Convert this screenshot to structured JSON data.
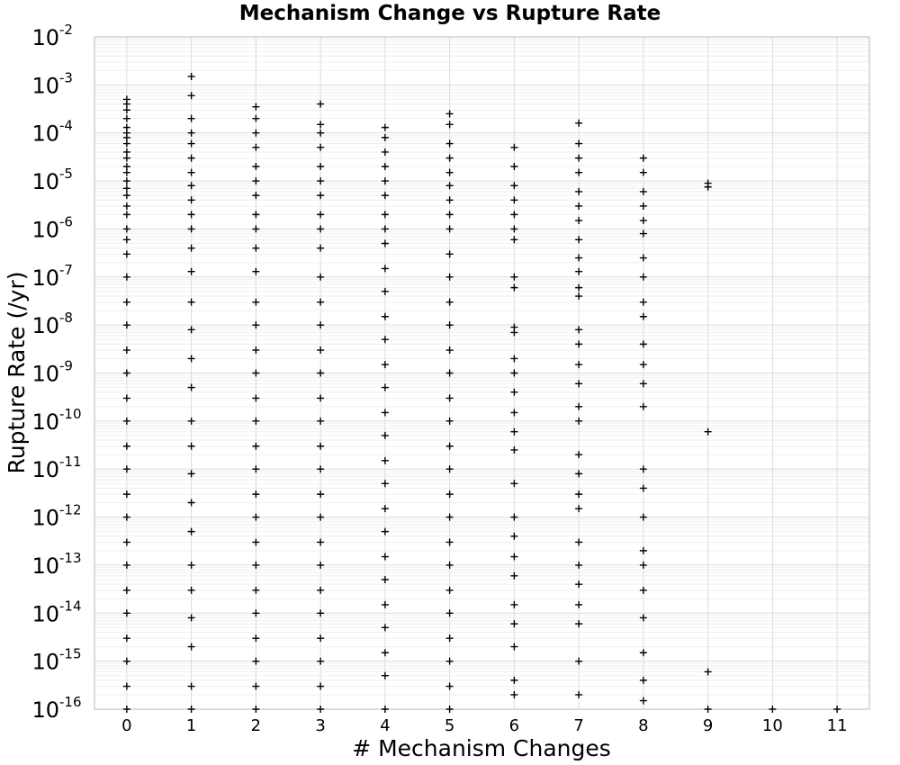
{
  "chart_data": {
    "type": "scatter",
    "title": "Mechanism Change vs Rupture Rate",
    "xlabel": "# Mechanism Changes",
    "ylabel": "Rupture Rate (/yr)",
    "xlim": [
      -0.5,
      11.5
    ],
    "ylim": [
      1e-16,
      0.01
    ],
    "y_scale": "log",
    "grid": true,
    "marker": "plus",
    "marker_color": "#000000",
    "x_ticks": [
      "0",
      "1",
      "2",
      "3",
      "4",
      "5",
      "6",
      "7",
      "8",
      "9",
      "10",
      "11"
    ],
    "y_ticks": [
      {
        "base": "10",
        "exp": "-2"
      },
      {
        "base": "10",
        "exp": "-3"
      },
      {
        "base": "10",
        "exp": "-4"
      },
      {
        "base": "10",
        "exp": "-5"
      },
      {
        "base": "10",
        "exp": "-6"
      },
      {
        "base": "10",
        "exp": "-7"
      },
      {
        "base": "10",
        "exp": "-8"
      },
      {
        "base": "10",
        "exp": "-9"
      },
      {
        "base": "10",
        "exp": "-10"
      },
      {
        "base": "10",
        "exp": "-11"
      },
      {
        "base": "10",
        "exp": "-12"
      },
      {
        "base": "10",
        "exp": "-13"
      },
      {
        "base": "10",
        "exp": "-14"
      },
      {
        "base": "10",
        "exp": "-15"
      },
      {
        "base": "10",
        "exp": "-16"
      }
    ],
    "points": [
      {
        "x": 0,
        "y": 0.0005
      },
      {
        "x": 0,
        "y": 0.0004
      },
      {
        "x": 0,
        "y": 0.0003
      },
      {
        "x": 0,
        "y": 0.0002
      },
      {
        "x": 0,
        "y": 0.00013
      },
      {
        "x": 0,
        "y": 0.0001
      },
      {
        "x": 0,
        "y": 8e-05
      },
      {
        "x": 0,
        "y": 6e-05
      },
      {
        "x": 0,
        "y": 4e-05
      },
      {
        "x": 0,
        "y": 3e-05
      },
      {
        "x": 0,
        "y": 2e-05
      },
      {
        "x": 0,
        "y": 1.5e-05
      },
      {
        "x": 0,
        "y": 1e-05
      },
      {
        "x": 0,
        "y": 7e-06
      },
      {
        "x": 0,
        "y": 5e-06
      },
      {
        "x": 0,
        "y": 3e-06
      },
      {
        "x": 0,
        "y": 2e-06
      },
      {
        "x": 0,
        "y": 1e-06
      },
      {
        "x": 0,
        "y": 6e-07
      },
      {
        "x": 0,
        "y": 3e-07
      },
      {
        "x": 0,
        "y": 1e-07
      },
      {
        "x": 0,
        "y": 3e-08
      },
      {
        "x": 0,
        "y": 1e-08
      },
      {
        "x": 0,
        "y": 3e-09
      },
      {
        "x": 0,
        "y": 1e-09
      },
      {
        "x": 0,
        "y": 3e-10
      },
      {
        "x": 0,
        "y": 1e-10
      },
      {
        "x": 0,
        "y": 3e-11
      },
      {
        "x": 0,
        "y": 1e-11
      },
      {
        "x": 0,
        "y": 3e-12
      },
      {
        "x": 0,
        "y": 1e-12
      },
      {
        "x": 0,
        "y": 3e-13
      },
      {
        "x": 0,
        "y": 1e-13
      },
      {
        "x": 0,
        "y": 3e-14
      },
      {
        "x": 0,
        "y": 1e-14
      },
      {
        "x": 0,
        "y": 3e-15
      },
      {
        "x": 0,
        "y": 1e-15
      },
      {
        "x": 0,
        "y": 3e-16
      },
      {
        "x": 0,
        "y": 1e-16
      },
      {
        "x": 1,
        "y": 0.0015
      },
      {
        "x": 1,
        "y": 0.0006
      },
      {
        "x": 1,
        "y": 0.0002
      },
      {
        "x": 1,
        "y": 0.0001
      },
      {
        "x": 1,
        "y": 6e-05
      },
      {
        "x": 1,
        "y": 3e-05
      },
      {
        "x": 1,
        "y": 1.5e-05
      },
      {
        "x": 1,
        "y": 8e-06
      },
      {
        "x": 1,
        "y": 4e-06
      },
      {
        "x": 1,
        "y": 2e-06
      },
      {
        "x": 1,
        "y": 1e-06
      },
      {
        "x": 1,
        "y": 4e-07
      },
      {
        "x": 1,
        "y": 1.3e-07
      },
      {
        "x": 1,
        "y": 3e-08
      },
      {
        "x": 1,
        "y": 8e-09
      },
      {
        "x": 1,
        "y": 2e-09
      },
      {
        "x": 1,
        "y": 5e-10
      },
      {
        "x": 1,
        "y": 1e-10
      },
      {
        "x": 1,
        "y": 3e-11
      },
      {
        "x": 1,
        "y": 8e-12
      },
      {
        "x": 1,
        "y": 2e-12
      },
      {
        "x": 1,
        "y": 5e-13
      },
      {
        "x": 1,
        "y": 1e-13
      },
      {
        "x": 1,
        "y": 3e-14
      },
      {
        "x": 1,
        "y": 8e-15
      },
      {
        "x": 1,
        "y": 2e-15
      },
      {
        "x": 1,
        "y": 3e-16
      },
      {
        "x": 1,
        "y": 1e-16
      },
      {
        "x": 2,
        "y": 0.00035
      },
      {
        "x": 2,
        "y": 0.0002
      },
      {
        "x": 2,
        "y": 0.0001
      },
      {
        "x": 2,
        "y": 5e-05
      },
      {
        "x": 2,
        "y": 2e-05
      },
      {
        "x": 2,
        "y": 1e-05
      },
      {
        "x": 2,
        "y": 5e-06
      },
      {
        "x": 2,
        "y": 2e-06
      },
      {
        "x": 2,
        "y": 1e-06
      },
      {
        "x": 2,
        "y": 4e-07
      },
      {
        "x": 2,
        "y": 1.3e-07
      },
      {
        "x": 2,
        "y": 3e-08
      },
      {
        "x": 2,
        "y": 1e-08
      },
      {
        "x": 2,
        "y": 3e-09
      },
      {
        "x": 2,
        "y": 1e-09
      },
      {
        "x": 2,
        "y": 3e-10
      },
      {
        "x": 2,
        "y": 1e-10
      },
      {
        "x": 2,
        "y": 3e-11
      },
      {
        "x": 2,
        "y": 1e-11
      },
      {
        "x": 2,
        "y": 3e-12
      },
      {
        "x": 2,
        "y": 1e-12
      },
      {
        "x": 2,
        "y": 3e-13
      },
      {
        "x": 2,
        "y": 1e-13
      },
      {
        "x": 2,
        "y": 3e-14
      },
      {
        "x": 2,
        "y": 1e-14
      },
      {
        "x": 2,
        "y": 3e-15
      },
      {
        "x": 2,
        "y": 1e-15
      },
      {
        "x": 2,
        "y": 3e-16
      },
      {
        "x": 2,
        "y": 1e-16
      },
      {
        "x": 3,
        "y": 0.0004
      },
      {
        "x": 3,
        "y": 0.00015
      },
      {
        "x": 3,
        "y": 0.0001
      },
      {
        "x": 3,
        "y": 5e-05
      },
      {
        "x": 3,
        "y": 2e-05
      },
      {
        "x": 3,
        "y": 1e-05
      },
      {
        "x": 3,
        "y": 5e-06
      },
      {
        "x": 3,
        "y": 2e-06
      },
      {
        "x": 3,
        "y": 1e-06
      },
      {
        "x": 3,
        "y": 4e-07
      },
      {
        "x": 3,
        "y": 1e-07
      },
      {
        "x": 3,
        "y": 3e-08
      },
      {
        "x": 3,
        "y": 1e-08
      },
      {
        "x": 3,
        "y": 3e-09
      },
      {
        "x": 3,
        "y": 1e-09
      },
      {
        "x": 3,
        "y": 3e-10
      },
      {
        "x": 3,
        "y": 1e-10
      },
      {
        "x": 3,
        "y": 3e-11
      },
      {
        "x": 3,
        "y": 1e-11
      },
      {
        "x": 3,
        "y": 3e-12
      },
      {
        "x": 3,
        "y": 1e-12
      },
      {
        "x": 3,
        "y": 3e-13
      },
      {
        "x": 3,
        "y": 1e-13
      },
      {
        "x": 3,
        "y": 3e-14
      },
      {
        "x": 3,
        "y": 1e-14
      },
      {
        "x": 3,
        "y": 3e-15
      },
      {
        "x": 3,
        "y": 1e-15
      },
      {
        "x": 3,
        "y": 3e-16
      },
      {
        "x": 3,
        "y": 1e-16
      },
      {
        "x": 4,
        "y": 0.00013
      },
      {
        "x": 4,
        "y": 8e-05
      },
      {
        "x": 4,
        "y": 4e-05
      },
      {
        "x": 4,
        "y": 2e-05
      },
      {
        "x": 4,
        "y": 1e-05
      },
      {
        "x": 4,
        "y": 5e-06
      },
      {
        "x": 4,
        "y": 2e-06
      },
      {
        "x": 4,
        "y": 1e-06
      },
      {
        "x": 4,
        "y": 5e-07
      },
      {
        "x": 4,
        "y": 1.5e-07
      },
      {
        "x": 4,
        "y": 5e-08
      },
      {
        "x": 4,
        "y": 1.5e-08
      },
      {
        "x": 4,
        "y": 5e-09
      },
      {
        "x": 4,
        "y": 1.5e-09
      },
      {
        "x": 4,
        "y": 5e-10
      },
      {
        "x": 4,
        "y": 1.5e-10
      },
      {
        "x": 4,
        "y": 5e-11
      },
      {
        "x": 4,
        "y": 1.5e-11
      },
      {
        "x": 4,
        "y": 5e-12
      },
      {
        "x": 4,
        "y": 1.5e-12
      },
      {
        "x": 4,
        "y": 5e-13
      },
      {
        "x": 4,
        "y": 1.5e-13
      },
      {
        "x": 4,
        "y": 5e-14
      },
      {
        "x": 4,
        "y": 1.5e-14
      },
      {
        "x": 4,
        "y": 5e-15
      },
      {
        "x": 4,
        "y": 1.5e-15
      },
      {
        "x": 4,
        "y": 5e-16
      },
      {
        "x": 4,
        "y": 1e-16
      },
      {
        "x": 5,
        "y": 0.00025
      },
      {
        "x": 5,
        "y": 0.00015
      },
      {
        "x": 5,
        "y": 6e-05
      },
      {
        "x": 5,
        "y": 3e-05
      },
      {
        "x": 5,
        "y": 1.5e-05
      },
      {
        "x": 5,
        "y": 8e-06
      },
      {
        "x": 5,
        "y": 4e-06
      },
      {
        "x": 5,
        "y": 2e-06
      },
      {
        "x": 5,
        "y": 1e-06
      },
      {
        "x": 5,
        "y": 3e-07
      },
      {
        "x": 5,
        "y": 1e-07
      },
      {
        "x": 5,
        "y": 3e-08
      },
      {
        "x": 5,
        "y": 1e-08
      },
      {
        "x": 5,
        "y": 3e-09
      },
      {
        "x": 5,
        "y": 1e-09
      },
      {
        "x": 5,
        "y": 3e-10
      },
      {
        "x": 5,
        "y": 1e-10
      },
      {
        "x": 5,
        "y": 3e-11
      },
      {
        "x": 5,
        "y": 1e-11
      },
      {
        "x": 5,
        "y": 3e-12
      },
      {
        "x": 5,
        "y": 1e-12
      },
      {
        "x": 5,
        "y": 3e-13
      },
      {
        "x": 5,
        "y": 1e-13
      },
      {
        "x": 5,
        "y": 3e-14
      },
      {
        "x": 5,
        "y": 1e-14
      },
      {
        "x": 5,
        "y": 3e-15
      },
      {
        "x": 5,
        "y": 1e-15
      },
      {
        "x": 5,
        "y": 3e-16
      },
      {
        "x": 5,
        "y": 1e-16
      },
      {
        "x": 6,
        "y": 5e-05
      },
      {
        "x": 6,
        "y": 2e-05
      },
      {
        "x": 6,
        "y": 8e-06
      },
      {
        "x": 6,
        "y": 4e-06
      },
      {
        "x": 6,
        "y": 2e-06
      },
      {
        "x": 6,
        "y": 1e-06
      },
      {
        "x": 6,
        "y": 6e-07
      },
      {
        "x": 6,
        "y": 1e-07
      },
      {
        "x": 6,
        "y": 6e-08
      },
      {
        "x": 6,
        "y": 9e-09
      },
      {
        "x": 6,
        "y": 7e-09
      },
      {
        "x": 6,
        "y": 2e-09
      },
      {
        "x": 6,
        "y": 1e-09
      },
      {
        "x": 6,
        "y": 4e-10
      },
      {
        "x": 6,
        "y": 1.5e-10
      },
      {
        "x": 6,
        "y": 6e-11
      },
      {
        "x": 6,
        "y": 2.5e-11
      },
      {
        "x": 6,
        "y": 5e-12
      },
      {
        "x": 6,
        "y": 1e-12
      },
      {
        "x": 6,
        "y": 4e-13
      },
      {
        "x": 6,
        "y": 1.5e-13
      },
      {
        "x": 6,
        "y": 6e-14
      },
      {
        "x": 6,
        "y": 1.5e-14
      },
      {
        "x": 6,
        "y": 6e-15
      },
      {
        "x": 6,
        "y": 2e-15
      },
      {
        "x": 6,
        "y": 4e-16
      },
      {
        "x": 6,
        "y": 2e-16
      },
      {
        "x": 7,
        "y": 0.00016
      },
      {
        "x": 7,
        "y": 6e-05
      },
      {
        "x": 7,
        "y": 3e-05
      },
      {
        "x": 7,
        "y": 1.5e-05
      },
      {
        "x": 7,
        "y": 6e-06
      },
      {
        "x": 7,
        "y": 3e-06
      },
      {
        "x": 7,
        "y": 1.5e-06
      },
      {
        "x": 7,
        "y": 6e-07
      },
      {
        "x": 7,
        "y": 2.5e-07
      },
      {
        "x": 7,
        "y": 1.3e-07
      },
      {
        "x": 7,
        "y": 6e-08
      },
      {
        "x": 7,
        "y": 4e-08
      },
      {
        "x": 7,
        "y": 8e-09
      },
      {
        "x": 7,
        "y": 4e-09
      },
      {
        "x": 7,
        "y": 1.5e-09
      },
      {
        "x": 7,
        "y": 6e-10
      },
      {
        "x": 7,
        "y": 2e-10
      },
      {
        "x": 7,
        "y": 1e-10
      },
      {
        "x": 7,
        "y": 2e-11
      },
      {
        "x": 7,
        "y": 8e-12
      },
      {
        "x": 7,
        "y": 3e-12
      },
      {
        "x": 7,
        "y": 1.5e-12
      },
      {
        "x": 7,
        "y": 3e-13
      },
      {
        "x": 7,
        "y": 1e-13
      },
      {
        "x": 7,
        "y": 4e-14
      },
      {
        "x": 7,
        "y": 1.5e-14
      },
      {
        "x": 7,
        "y": 6e-15
      },
      {
        "x": 7,
        "y": 1e-15
      },
      {
        "x": 7,
        "y": 2e-16
      },
      {
        "x": 8,
        "y": 3e-05
      },
      {
        "x": 8,
        "y": 1.5e-05
      },
      {
        "x": 8,
        "y": 6e-06
      },
      {
        "x": 8,
        "y": 3e-06
      },
      {
        "x": 8,
        "y": 1.5e-06
      },
      {
        "x": 8,
        "y": 8e-07
      },
      {
        "x": 8,
        "y": 2.5e-07
      },
      {
        "x": 8,
        "y": 1e-07
      },
      {
        "x": 8,
        "y": 3e-08
      },
      {
        "x": 8,
        "y": 1.5e-08
      },
      {
        "x": 8,
        "y": 4e-09
      },
      {
        "x": 8,
        "y": 1.5e-09
      },
      {
        "x": 8,
        "y": 6e-10
      },
      {
        "x": 8,
        "y": 2e-10
      },
      {
        "x": 8,
        "y": 1e-11
      },
      {
        "x": 8,
        "y": 4e-12
      },
      {
        "x": 8,
        "y": 1e-12
      },
      {
        "x": 8,
        "y": 2e-13
      },
      {
        "x": 8,
        "y": 1e-13
      },
      {
        "x": 8,
        "y": 3e-14
      },
      {
        "x": 8,
        "y": 8e-15
      },
      {
        "x": 8,
        "y": 1.5e-15
      },
      {
        "x": 8,
        "y": 4e-16
      },
      {
        "x": 8,
        "y": 1.5e-16
      },
      {
        "x": 9,
        "y": 9e-06
      },
      {
        "x": 9,
        "y": 7.5e-06
      },
      {
        "x": 9,
        "y": 6e-11
      },
      {
        "x": 9,
        "y": 6e-16
      },
      {
        "x": 9,
        "y": 1e-16
      },
      {
        "x": 10,
        "y": 1e-16
      },
      {
        "x": 11,
        "y": 1e-16
      }
    ]
  }
}
